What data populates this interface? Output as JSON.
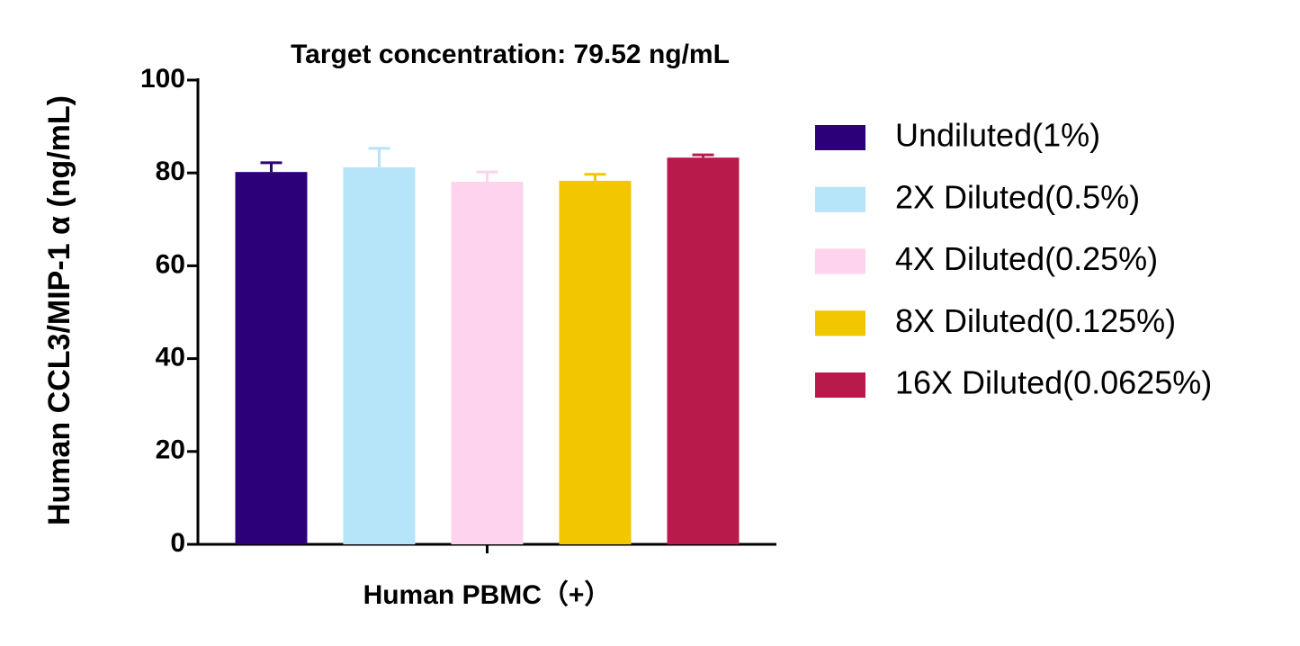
{
  "chart_data": {
    "type": "bar",
    "title": "Target concentration: 79.52 ng/mL",
    "y_label": "Human  CCL3/MIP-1 α (ng/mL)",
    "categories": [
      "Human PBMC（+）"
    ],
    "series": [
      {
        "name": "Undiluted(1%)",
        "color": "#2c0078",
        "values": [
          80.2
        ],
        "errors": [
          2.0
        ]
      },
      {
        "name": "2X Diluted(0.5%)",
        "color": "#b6e4f8",
        "values": [
          81.2
        ],
        "errors": [
          4.1
        ]
      },
      {
        "name": "4X Diluted(0.25%)",
        "color": "#fdd3ee",
        "values": [
          78.1
        ],
        "errors": [
          2.1
        ]
      },
      {
        "name": "8X Diluted(0.125%)",
        "color": "#f2c600",
        "values": [
          78.3
        ],
        "errors": [
          1.4
        ]
      },
      {
        "name": "16X Diluted(0.0625%)",
        "color": "#b81a4c",
        "values": [
          83.3
        ],
        "errors": [
          0.6
        ]
      }
    ],
    "ylim": [
      0,
      100
    ],
    "yticks": [
      0,
      20,
      40,
      60,
      80,
      100
    ],
    "legend": "right"
  }
}
